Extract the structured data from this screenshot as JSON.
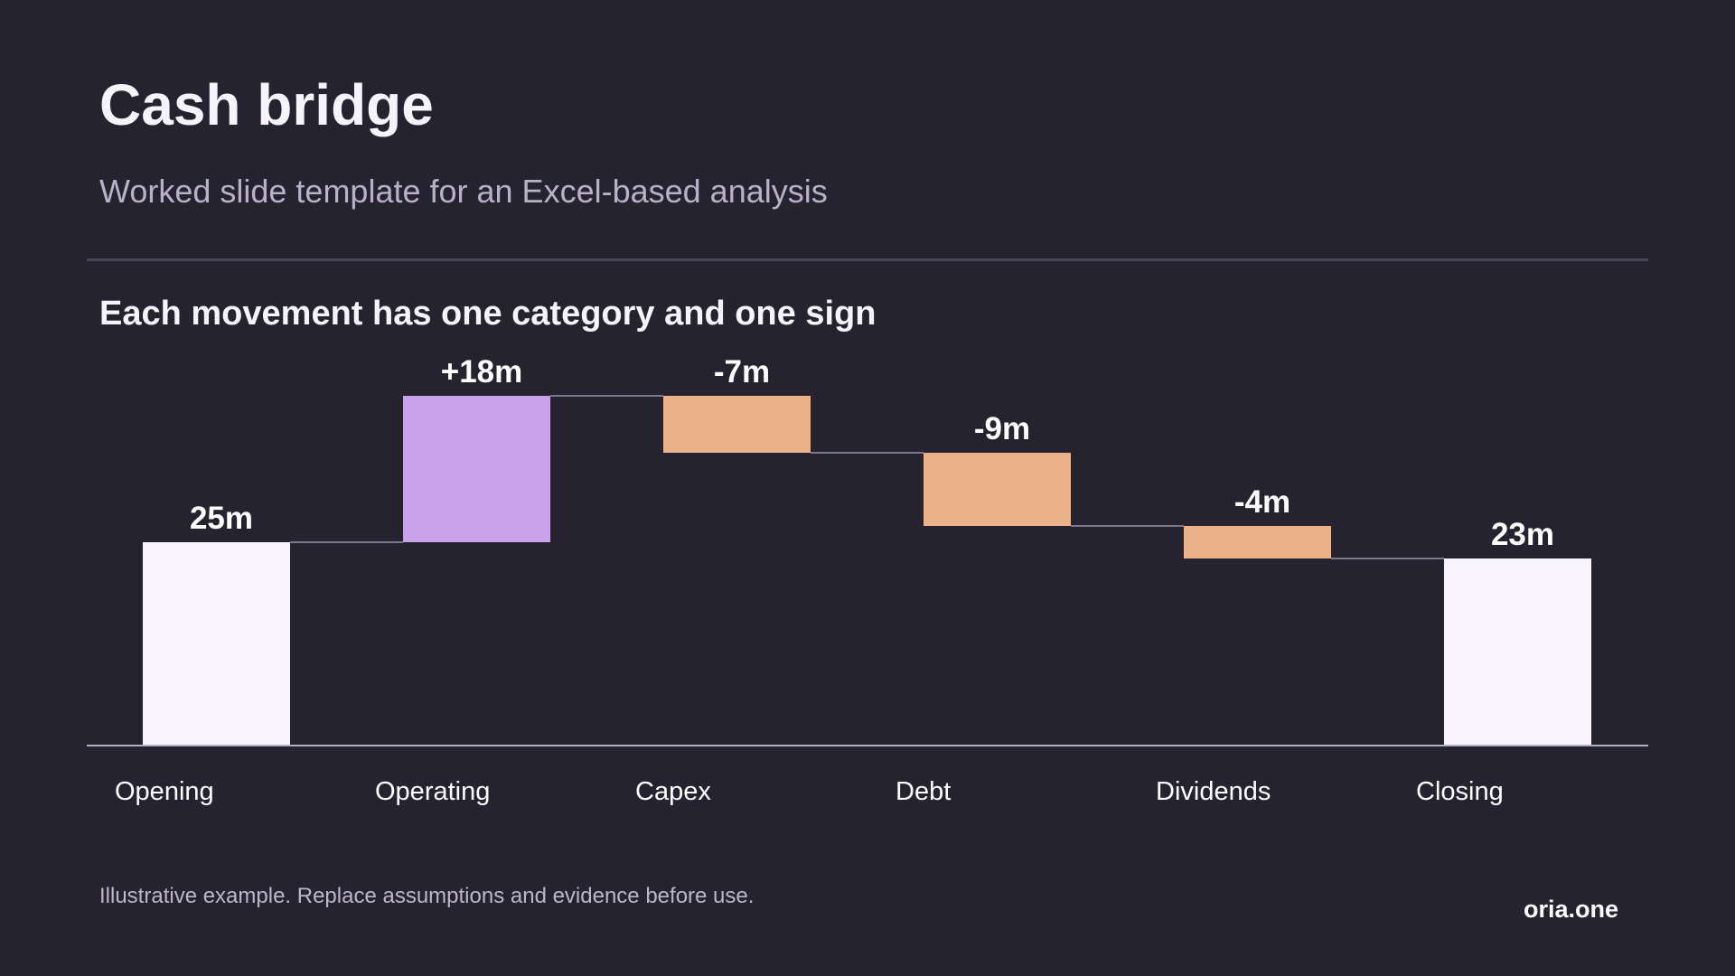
{
  "slide": {
    "title": "Cash bridge",
    "subtitle": "Worked slide template for an Excel-based analysis",
    "chart_heading": "Each movement has one category and one sign",
    "footnote": "Illustrative example. Replace assumptions and evidence before use.",
    "brand": "oria.one"
  },
  "colors": {
    "background": "#262331",
    "total": "#f8f4ff",
    "increase": "#c9a2ea",
    "decrease": "#ebb289",
    "connector": "#9a93a8",
    "axis": "#b4aebf"
  },
  "chart_data": {
    "type": "waterfall",
    "title": "Each movement has one category and one sign",
    "categories": [
      "Opening",
      "Operating",
      "Capex",
      "Debt",
      "Dividends",
      "Closing"
    ],
    "values": [
      25,
      18,
      -7,
      -9,
      -4,
      23
    ],
    "kinds": [
      "total",
      "increase",
      "decrease",
      "decrease",
      "decrease",
      "total"
    ],
    "labels": [
      "25m",
      "+18m",
      "-7m",
      "-9m",
      "-4m",
      "23m"
    ],
    "ylim": [
      0,
      43
    ],
    "grid": false,
    "legend": "none"
  }
}
